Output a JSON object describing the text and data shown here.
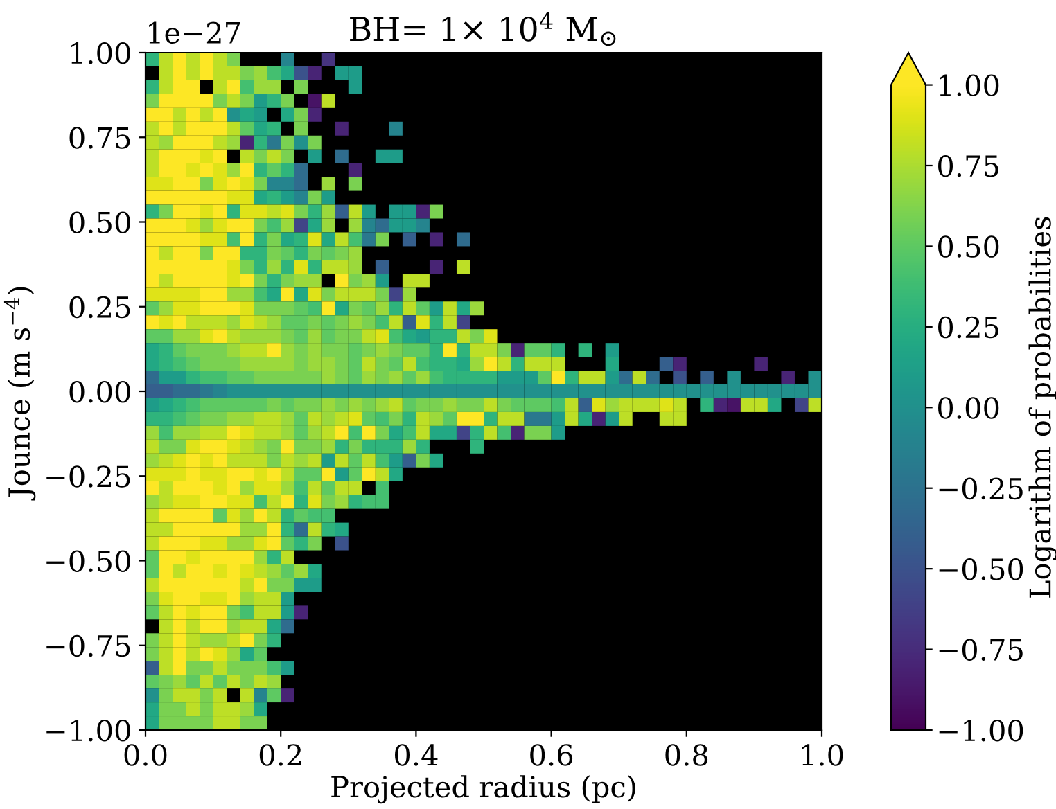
{
  "chart_data": {
    "type": "heatmap",
    "title": "BH= 1× 10$^{4}$ M$_{⊙}$",
    "xlabel": "Projected radius (pc)",
    "ylabel": "Jounce (m s$^{−4}$)",
    "clabel": "Logarithm of probabilities",
    "annotations": [
      "1e−27"
    ],
    "xlim": [
      0,
      1
    ],
    "ylim": [
      -1,
      1
    ],
    "xticks": [
      {
        "value": 0,
        "label": "0.0"
      },
      {
        "value": 0.2,
        "label": "0.2"
      },
      {
        "value": 0.4,
        "label": "0.4"
      },
      {
        "value": 0.6,
        "label": "0.6"
      },
      {
        "value": 0.8,
        "label": "0.8"
      },
      {
        "value": 1,
        "label": "1.0"
      }
    ],
    "yticks": [
      {
        "value": -1,
        "label": "−1.00"
      },
      {
        "value": -0.75,
        "label": "−0.75"
      },
      {
        "value": -0.5,
        "label": "−0.50"
      },
      {
        "value": -0.25,
        "label": "−0.25"
      },
      {
        "value": 0,
        "label": "0.00"
      },
      {
        "value": 0.25,
        "label": "0.25"
      },
      {
        "value": 0.5,
        "label": "0.50"
      },
      {
        "value": 0.75,
        "label": "0.75"
      },
      {
        "value": 1,
        "label": "1.00"
      }
    ],
    "clim": [
      -1,
      1
    ],
    "cticks": [
      {
        "value": -1,
        "label": "−1.00"
      },
      {
        "value": -0.75,
        "label": "−0.75"
      },
      {
        "value": -0.5,
        "label": "−0.50"
      },
      {
        "value": -0.25,
        "label": "−0.25"
      },
      {
        "value": 0,
        "label": "0.00"
      },
      {
        "value": 0.25,
        "label": "0.25"
      },
      {
        "value": 0.5,
        "label": "0.50"
      },
      {
        "value": 0.75,
        "label": "0.75"
      },
      {
        "value": 1,
        "label": "1.00"
      }
    ],
    "cells": [
      [
        0.3,
        0.8,
        1,
        0.8,
        1,
        0.8,
        0.6,
        null,
        null,
        null,
        -0.1,
        null,
        null,
        -0.7,
        null,
        null,
        null,
        null,
        null,
        null,
        null,
        null,
        null,
        null,
        null,
        null,
        null,
        null,
        null,
        null,
        null,
        null,
        null,
        null,
        null,
        null,
        null,
        null,
        null,
        null,
        null,
        null,
        null,
        null,
        null,
        null,
        null,
        null,
        null,
        null
      ],
      [
        null,
        0.8,
        1,
        0.8,
        1,
        0.8,
        0.8,
        0.6,
        0.7,
        0.4,
        0.2,
        -0.5,
        -0.8,
        null,
        0.1,
        0.1,
        null,
        null,
        null,
        null,
        null,
        null,
        null,
        null,
        null,
        null,
        null,
        null,
        null,
        null,
        null,
        null,
        null,
        null,
        null,
        null,
        null,
        null,
        null,
        null,
        null,
        null,
        null,
        null,
        null,
        null,
        null,
        null,
        null,
        null
      ],
      [
        0.3,
        0.8,
        1,
        1,
        null,
        0.8,
        1,
        0.4,
        0.7,
        0.7,
        null,
        0.6,
        null,
        null,
        null,
        0.1,
        null,
        null,
        null,
        null,
        null,
        null,
        null,
        null,
        null,
        null,
        null,
        null,
        null,
        null,
        null,
        null,
        null,
        null,
        null,
        null,
        null,
        null,
        null,
        null,
        null,
        null,
        null,
        null,
        null,
        null,
        null,
        null,
        null,
        null
      ],
      [
        0.6,
        1,
        1,
        1,
        1,
        0.6,
        0.8,
        0.6,
        0.1,
        0.3,
        0.6,
        null,
        -0.9,
        0.8,
        null,
        null,
        null,
        null,
        null,
        null,
        null,
        null,
        null,
        null,
        null,
        null,
        null,
        null,
        null,
        null,
        null,
        null,
        null,
        null,
        null,
        null,
        null,
        null,
        null,
        null,
        null,
        null,
        null,
        null,
        null,
        null,
        null,
        null,
        null,
        null
      ],
      [
        1,
        1,
        0.8,
        1,
        0.8,
        1,
        0.0,
        0.2,
        0.1,
        null,
        0.2,
        0.6,
        -0.8,
        null,
        null,
        null,
        null,
        null,
        null,
        null,
        null,
        null,
        null,
        null,
        null,
        null,
        null,
        null,
        null,
        null,
        null,
        null,
        null,
        null,
        null,
        null,
        null,
        null,
        null,
        null,
        null,
        null,
        null,
        null,
        null,
        null,
        null,
        null,
        null,
        null
      ],
      [
        0.8,
        1,
        0.8,
        1,
        1,
        1,
        0.8,
        0.5,
        0.2,
        0.3,
        null,
        0.6,
        null,
        null,
        -0.8,
        null,
        null,
        null,
        -0.1,
        null,
        null,
        null,
        null,
        null,
        null,
        null,
        null,
        null,
        null,
        null,
        null,
        null,
        null,
        null,
        null,
        null,
        null,
        null,
        null,
        null,
        null,
        null,
        null,
        null,
        null,
        null,
        null,
        null,
        null,
        null
      ],
      [
        0.8,
        0.7,
        1,
        1,
        1,
        0.8,
        0.7,
        -0.8,
        0.3,
        -0.2,
        0.6,
        0.0,
        0.6,
        null,
        null,
        null,
        null,
        null,
        null,
        null,
        null,
        null,
        null,
        null,
        null,
        null,
        null,
        null,
        null,
        null,
        null,
        null,
        null,
        null,
        null,
        null,
        null,
        null,
        null,
        null,
        null,
        null,
        null,
        null,
        null,
        null,
        null,
        null,
        null,
        null
      ],
      [
        0.8,
        1,
        1,
        1,
        0.9,
        1,
        null,
        0.8,
        0.6,
        0.8,
        0.6,
        null,
        0.1,
        null,
        -0.3,
        null,
        null,
        0.1,
        0.1,
        null,
        null,
        null,
        null,
        null,
        null,
        null,
        null,
        null,
        null,
        null,
        null,
        null,
        null,
        null,
        null,
        null,
        null,
        null,
        null,
        null,
        null,
        null,
        null,
        null,
        null,
        null,
        null,
        null,
        null,
        null
      ],
      [
        0.8,
        1,
        1,
        0.9,
        1,
        0.9,
        0.7,
        1,
        0.3,
        0.5,
        0.3,
        -0.3,
        null,
        null,
        null,
        -0.8,
        null,
        null,
        null,
        null,
        null,
        null,
        null,
        null,
        null,
        null,
        null,
        null,
        null,
        null,
        null,
        null,
        null,
        null,
        null,
        null,
        null,
        null,
        null,
        null,
        null,
        null,
        null,
        null,
        null,
        null,
        null,
        null,
        null,
        null
      ],
      [
        0.9,
        0.9,
        1,
        1,
        0.6,
        0.9,
        1,
        0.9,
        0.6,
        -0.1,
        -0.1,
        -0.3,
        null,
        0.7,
        null,
        0.6,
        null,
        null,
        null,
        null,
        null,
        null,
        null,
        null,
        null,
        null,
        null,
        null,
        null,
        null,
        null,
        null,
        null,
        null,
        null,
        null,
        null,
        null,
        null,
        null,
        null,
        null,
        null,
        null,
        null,
        null,
        null,
        null,
        null,
        null
      ],
      [
        1,
        1,
        1,
        1,
        1,
        1,
        0.9,
        0.9,
        0.2,
        0.3,
        0.1,
        -0.1,
        0.6,
        0.1,
        null,
        null,
        null,
        null,
        null,
        null,
        null,
        null,
        null,
        null,
        null,
        null,
        null,
        null,
        null,
        null,
        null,
        null,
        null,
        null,
        null,
        null,
        null,
        null,
        null,
        null,
        null,
        null,
        null,
        null,
        null,
        null,
        null,
        null,
        null,
        null
      ],
      [
        0.3,
        0.6,
        1,
        1,
        0.9,
        1,
        0.3,
        0.9,
        0.9,
        0.8,
        0.9,
        0.6,
        0.3,
        0.7,
        -0.4,
        0.8,
        0.1,
        null,
        0.1,
        0.1,
        -0.8,
        0.6,
        null,
        null,
        null,
        null,
        null,
        null,
        null,
        null,
        null,
        null,
        null,
        null,
        null,
        null,
        null,
        null,
        null,
        null,
        null,
        null,
        null,
        null,
        null,
        null,
        null,
        null,
        null,
        null
      ],
      [
        1,
        1,
        1,
        0.9,
        0.7,
        0.9,
        1,
        1,
        0.6,
        0.4,
        0.7,
        -0.6,
        0.2,
        0.7,
        null,
        0.7,
        -0.1,
        -0.3,
        0.1,
        0.1,
        -0.1,
        null,
        null,
        null,
        null,
        null,
        null,
        null,
        null,
        null,
        null,
        null,
        null,
        null,
        null,
        null,
        null,
        null,
        null,
        null,
        null,
        null,
        null,
        null,
        null,
        null,
        null,
        null,
        null,
        null
      ],
      [
        1,
        1,
        1,
        1,
        0.9,
        0.9,
        0.4,
        1,
        0.3,
        0.6,
        0.2,
        0.3,
        0.9,
        0.2,
        0.8,
        0.4,
        -0.2,
        0.6,
        null,
        -0.4,
        null,
        -0.8,
        null,
        -0.3,
        null,
        null,
        null,
        null,
        null,
        null,
        null,
        null,
        null,
        null,
        null,
        null,
        null,
        null,
        null,
        null,
        null,
        null,
        null,
        null,
        null,
        null,
        null,
        null,
        null,
        null
      ],
      [
        1,
        0.8,
        1,
        1,
        0.6,
        1,
        1,
        0.3,
        0.3,
        0.6,
        0.5,
        0.3,
        0.6,
        0.5,
        0.6,
        0.7,
        null,
        null,
        null,
        null,
        null,
        null,
        null,
        null,
        null,
        null,
        null,
        null,
        null,
        null,
        null,
        null,
        null,
        null,
        null,
        null,
        null,
        null,
        null,
        null,
        null,
        null,
        null,
        null,
        null,
        null,
        null,
        null,
        null,
        null
      ],
      [
        1,
        1,
        1,
        1,
        1,
        1,
        0.9,
        0.6,
        0.3,
        0.7,
        0.3,
        0.9,
        0.3,
        0.8,
        0.8,
        0.7,
        null,
        -0.4,
        null,
        null,
        null,
        -0.8,
        null,
        0.8,
        null,
        null,
        null,
        null,
        null,
        null,
        null,
        null,
        null,
        null,
        null,
        null,
        null,
        null,
        null,
        null,
        null,
        null,
        null,
        null,
        null,
        null,
        null,
        null,
        null,
        null
      ],
      [
        1,
        0.8,
        1,
        1,
        1,
        1,
        0.9,
        1,
        0.6,
        0.3,
        0.6,
        0.7,
        0.7,
        null,
        1,
        0.6,
        0.7,
        0.1,
        null,
        0.8,
        0.8,
        null,
        null,
        null,
        null,
        null,
        null,
        null,
        null,
        null,
        null,
        null,
        null,
        null,
        null,
        null,
        null,
        null,
        null,
        null,
        null,
        null,
        null,
        null,
        null,
        null,
        null,
        null,
        null,
        null
      ],
      [
        0.9,
        0.9,
        0.9,
        0.9,
        1,
        1,
        0.7,
        0.7,
        0.4,
        0.2,
        1,
        0.2,
        0.9,
        0.6,
        0.8,
        0.8,
        0.8,
        0.6,
        -0.6,
        0.7,
        null,
        null,
        null,
        null,
        null,
        null,
        null,
        null,
        null,
        null,
        null,
        null,
        null,
        null,
        null,
        null,
        null,
        null,
        null,
        null,
        null,
        null,
        null,
        null,
        null,
        null,
        null,
        null,
        null,
        null
      ],
      [
        0.5,
        0.7,
        0.9,
        0.9,
        1,
        1,
        1,
        0.9,
        0.6,
        0.6,
        0.6,
        0.5,
        0.4,
        1,
        0.2,
        0.6,
        0.5,
        0.7,
        0.3,
        0.8,
        0.5,
        0.1,
        0.8,
        0.2,
        0.7,
        null,
        null,
        null,
        null,
        null,
        null,
        null,
        null,
        null,
        null,
        null,
        null,
        null,
        null,
        null,
        null,
        null,
        null,
        null,
        null,
        null,
        null,
        null,
        null,
        null
      ],
      [
        1,
        0.9,
        1,
        0.8,
        0.8,
        0.8,
        0.7,
        0.9,
        0.8,
        0.7,
        0.5,
        0.5,
        0.6,
        0.5,
        0.6,
        0.7,
        0.6,
        0.4,
        0.8,
        -0.4,
        0.9,
        0.3,
        0.8,
        -0.6,
        null,
        null,
        null,
        null,
        null,
        null,
        null,
        null,
        null,
        null,
        null,
        null,
        null,
        null,
        null,
        null,
        null,
        null,
        null,
        null,
        null,
        null,
        null,
        null,
        null,
        null
      ],
      [
        0.5,
        0.5,
        0.7,
        0.7,
        0.9,
        1,
        0.8,
        0.7,
        0.7,
        0.7,
        0.6,
        0.5,
        0.7,
        0.5,
        0.6,
        0.6,
        0.8,
        0.9,
        0.4,
        0.2,
        0.1,
        0.3,
        0.3,
        0.8,
        0.6,
        0.9,
        null,
        null,
        null,
        null,
        null,
        null,
        null,
        null,
        null,
        null,
        null,
        null,
        null,
        null,
        null,
        null,
        null,
        null,
        null,
        null,
        null,
        null,
        null,
        null
      ],
      [
        0.2,
        0.3,
        0.5,
        0.6,
        0.6,
        0.6,
        0.7,
        0.8,
        0.8,
        1,
        0.7,
        0.6,
        0.7,
        0.6,
        0.6,
        0.5,
        0.6,
        0.7,
        0.6,
        0.5,
        0.5,
        0.3,
        1,
        0.3,
        0.8,
        0.8,
        0.6,
        -0.8,
        0.5,
        0.5,
        0.3,
        null,
        0.3,
        null,
        0.1,
        null,
        null,
        null,
        null,
        null,
        null,
        null,
        null,
        null,
        null,
        null,
        null,
        null,
        null,
        null
      ],
      [
        0.2,
        0.3,
        0.4,
        0.5,
        0.6,
        0.6,
        0.6,
        0.7,
        0.7,
        0.7,
        0.7,
        0.6,
        0.7,
        0.7,
        0.6,
        0.5,
        0.8,
        0.6,
        0.5,
        0.8,
        0.4,
        0.3,
        0.3,
        0.2,
        0.7,
        1,
        0.8,
        0.3,
        0.8,
        0.8,
        0.8,
        null,
        null,
        null,
        0.2,
        null,
        null,
        null,
        -0.4,
        -0.8,
        null,
        null,
        null,
        null,
        null,
        -0.8,
        null,
        null,
        null,
        null
      ],
      [
        -0.3,
        0.1,
        0.1,
        0.3,
        0.4,
        0.4,
        0.5,
        0.5,
        0.6,
        0.6,
        0.6,
        0.6,
        0.6,
        0.7,
        0.6,
        0.5,
        0.7,
        0.6,
        0.7,
        0.5,
        0.7,
        0.4,
        0.3,
        0.3,
        0.3,
        0.3,
        0.1,
        0.1,
        0.1,
        0.5,
        1,
        0.3,
        0.8,
        0.8,
        0.1,
        -0.3,
        0.8,
        -0.3,
        null,
        -0.5,
        null,
        -0.4,
        null,
        0.0,
        null,
        null,
        null,
        -0.8,
        null,
        0.0
      ],
      [
        -0.4,
        -0.4,
        -0.3,
        -0.3,
        -0.2,
        -0.1,
        0.0,
        0.0,
        0.0,
        0.0,
        0.0,
        0.0,
        0.0,
        0.0,
        0.0,
        0.0,
        0.0,
        0.0,
        0.0,
        0.0,
        0.0,
        0.0,
        0.0,
        0.0,
        0.0,
        0.0,
        0.0,
        0.0,
        0.0,
        0.0,
        0.0,
        0.0,
        0.0,
        0.0,
        0.0,
        0.0,
        0.0,
        0.0,
        0.0,
        0.0,
        0.0,
        0.0,
        0.0,
        0.0,
        0.0,
        0.0,
        0.0,
        0.0,
        0.0,
        0.0
      ],
      [
        0.1,
        0.2,
        0.3,
        0.4,
        0.5,
        0.5,
        0.5,
        0.5,
        0.5,
        0.6,
        0.5,
        0.6,
        0.6,
        0.7,
        0.6,
        0.7,
        0.6,
        0.7,
        0.8,
        0.5,
        0.6,
        0.6,
        0.7,
        0.6,
        0.6,
        0.8,
        0.6,
        0.5,
        0.5,
        0.5,
        0.4,
        0.8,
        -0.4,
        0.9,
        0.7,
        0.8,
        0.8,
        0.8,
        0.9,
        0.8,
        null,
        0.3,
        -0.8,
        -0.9,
        0.8,
        0.8,
        0.2,
        null,
        -0.6,
        0.8
      ],
      [
        0.3,
        0.3,
        0.4,
        0.5,
        0.6,
        0.6,
        0.7,
        0.7,
        0.8,
        0.8,
        0.7,
        0.5,
        0.8,
        0.7,
        0.8,
        0.9,
        0.5,
        0.4,
        0.6,
        0.3,
        0.8,
        0.7,
        0.5,
        1,
        1,
        0.3,
        0.8,
        0.8,
        -0.2,
        -0.2,
        0.1,
        0.8,
        0.2,
        -0.8,
        0.1,
        0.8,
        null,
        null,
        0.8,
        0.8,
        null,
        null,
        null,
        null,
        null,
        null,
        null,
        null,
        null,
        null
      ],
      [
        0.7,
        0.4,
        0.7,
        0.7,
        0.8,
        0.8,
        1,
        0.9,
        0.8,
        0.8,
        0.7,
        0.5,
        0.7,
        0.8,
        1,
        0.4,
        1,
        0.6,
        0.2,
        0.4,
        0.8,
        0.2,
        0.2,
        -0.6,
        0.3,
        0.8,
        0.4,
        -0.8,
        0.6,
        0.6,
        0.1,
        null,
        null,
        null,
        null,
        null,
        null,
        null,
        null,
        null,
        null,
        null,
        null,
        null,
        null,
        null,
        null,
        null,
        null,
        null
      ],
      [
        0.8,
        0.6,
        0.6,
        0.9,
        1,
        1,
        0.9,
        0.8,
        0.7,
        0.6,
        1,
        0.6,
        0.6,
        0.7,
        0.3,
        0.6,
        0.3,
        0.3,
        0.3,
        0.7,
        0.3,
        null,
        null,
        null,
        0.3,
        null,
        null,
        null,
        null,
        null,
        null,
        null,
        null,
        null,
        null,
        null,
        null,
        null,
        null,
        null,
        null,
        null,
        null,
        null,
        null,
        null,
        null,
        null,
        null,
        null
      ],
      [
        0.7,
        0.8,
        0.9,
        1,
        0.9,
        1,
        0.8,
        0.8,
        0.8,
        0.6,
        0.8,
        0.7,
        0.8,
        0.1,
        0.8,
        0.5,
        0.8,
        0.4,
        0.1,
        -0.4,
        0.6,
        0.2,
        null,
        null,
        null,
        null,
        null,
        null,
        null,
        null,
        null,
        null,
        null,
        null,
        null,
        null,
        null,
        null,
        null,
        null,
        null,
        null,
        null,
        null,
        null,
        null,
        null,
        null,
        null,
        null
      ],
      [
        0.9,
        0.9,
        0.9,
        1,
        0.9,
        0.9,
        1,
        1,
        0.9,
        1,
        0.8,
        0.5,
        0.5,
        1,
        0.1,
        0.5,
        1,
        0.8,
        0.2,
        null,
        null,
        null,
        null,
        null,
        null,
        null,
        null,
        null,
        null,
        null,
        null,
        null,
        null,
        null,
        null,
        null,
        null,
        null,
        null,
        null,
        null,
        null,
        null,
        null,
        null,
        null,
        null,
        null,
        null,
        null
      ],
      [
        1,
        0.8,
        1,
        1,
        1,
        0.9,
        1,
        0.7,
        0.9,
        0.9,
        0.7,
        0.4,
        0.8,
        0.5,
        0.8,
        0.8,
        null,
        0.4,
        null,
        null,
        null,
        null,
        null,
        null,
        null,
        null,
        null,
        null,
        null,
        null,
        null,
        null,
        null,
        null,
        null,
        null,
        null,
        null,
        null,
        null,
        null,
        null,
        null,
        null,
        null,
        null,
        null,
        null,
        null,
        null
      ],
      [
        0.7,
        0.8,
        0.9,
        0.9,
        1,
        1,
        0.9,
        0.9,
        0.4,
        0.8,
        1,
        0.3,
        0.9,
        0.6,
        0.7,
        0.3,
        0.4,
        0.4,
        null,
        null,
        null,
        null,
        null,
        null,
        null,
        null,
        null,
        null,
        null,
        null,
        null,
        null,
        null,
        null,
        null,
        null,
        null,
        null,
        null,
        null,
        null,
        null,
        null,
        null,
        null,
        null,
        null,
        null,
        null,
        null
      ],
      [
        0.8,
        1,
        1,
        1,
        1,
        0.5,
        0.9,
        0.7,
        1,
        0.8,
        0.3,
        0.5,
        0.4,
        0.4,
        null,
        null,
        null,
        null,
        null,
        null,
        null,
        null,
        null,
        null,
        null,
        null,
        null,
        null,
        null,
        null,
        null,
        null,
        null,
        null,
        null,
        null,
        null,
        null,
        null,
        null,
        null,
        null,
        null,
        null,
        null,
        null,
        null,
        null,
        null,
        null
      ],
      [
        0.8,
        0.8,
        1,
        1,
        1,
        1,
        1,
        0.7,
        0.7,
        1,
        0.3,
        -0.3,
        0.8,
        0.3,
        0.2,
        null,
        null,
        null,
        null,
        null,
        null,
        null,
        null,
        null,
        null,
        null,
        null,
        null,
        null,
        null,
        null,
        null,
        null,
        null,
        null,
        null,
        null,
        null,
        null,
        null,
        null,
        null,
        null,
        null,
        null,
        null,
        null,
        null,
        null,
        null
      ],
      [
        0.8,
        1,
        1,
        1,
        0.9,
        0.9,
        0.7,
        0.7,
        0.9,
        1,
        0.5,
        0.3,
        0.6,
        null,
        -0.5,
        null,
        null,
        null,
        null,
        null,
        null,
        null,
        null,
        null,
        null,
        null,
        null,
        null,
        null,
        null,
        null,
        null,
        null,
        null,
        null,
        null,
        null,
        null,
        null,
        null,
        null,
        null,
        null,
        null,
        null,
        null,
        null,
        null,
        null,
        null
      ],
      [
        0.5,
        1,
        1,
        0.9,
        1,
        1,
        1,
        1,
        0.7,
        0.3,
        0.8,
        null,
        null,
        null,
        null,
        null,
        null,
        null,
        null,
        null,
        null,
        null,
        null,
        null,
        null,
        null,
        null,
        null,
        null,
        null,
        null,
        null,
        null,
        null,
        null,
        null,
        null,
        null,
        null,
        null,
        null,
        null,
        null,
        null,
        null,
        null,
        null,
        null,
        null,
        null
      ],
      [
        0.5,
        1,
        0.8,
        1,
        1,
        0.9,
        1,
        0.9,
        0.8,
        0.7,
        0.5,
        0.7,
        0.2,
        null,
        null,
        null,
        null,
        null,
        null,
        null,
        null,
        null,
        null,
        null,
        null,
        null,
        null,
        null,
        null,
        null,
        null,
        null,
        null,
        null,
        null,
        null,
        null,
        null,
        null,
        null,
        null,
        null,
        null,
        null,
        null,
        null,
        null,
        null,
        null,
        null
      ],
      [
        0.8,
        1,
        1,
        1,
        1,
        1,
        1,
        0.8,
        1,
        0.6,
        0.6,
        0.1,
        0.1,
        null,
        null,
        null,
        null,
        null,
        null,
        null,
        null,
        null,
        null,
        null,
        null,
        null,
        null,
        null,
        null,
        null,
        null,
        null,
        null,
        null,
        null,
        null,
        null,
        null,
        null,
        null,
        null,
        null,
        null,
        null,
        null,
        null,
        null,
        null,
        null,
        null
      ],
      [
        0.6,
        0.9,
        1,
        1,
        0.9,
        0.9,
        1,
        0.7,
        0.8,
        0.8,
        0.1,
        null,
        null,
        null,
        null,
        null,
        null,
        null,
        null,
        null,
        null,
        null,
        null,
        null,
        null,
        null,
        null,
        null,
        null,
        null,
        null,
        null,
        null,
        null,
        null,
        null,
        null,
        null,
        null,
        null,
        null,
        null,
        null,
        null,
        null,
        null,
        null,
        null,
        null,
        null
      ],
      [
        0.5,
        0.8,
        1,
        0.9,
        1,
        1,
        0.6,
        0.4,
        0.8,
        0.8,
        0.1,
        -0.8,
        null,
        null,
        null,
        null,
        null,
        null,
        null,
        null,
        null,
        null,
        null,
        null,
        null,
        null,
        null,
        null,
        null,
        null,
        null,
        null,
        null,
        null,
        null,
        null,
        null,
        null,
        null,
        null,
        null,
        null,
        null,
        null,
        null,
        null,
        null,
        null,
        null,
        null
      ],
      [
        null,
        0.8,
        1,
        0.8,
        1,
        1,
        0.7,
        0.8,
        0.8,
        0.2,
        -0.3,
        null,
        null,
        null,
        null,
        null,
        null,
        null,
        null,
        null,
        null,
        null,
        null,
        null,
        null,
        null,
        null,
        null,
        null,
        null,
        null,
        null,
        null,
        null,
        null,
        null,
        null,
        null,
        null,
        null,
        null,
        null,
        null,
        null,
        null,
        null,
        null,
        null,
        null,
        null
      ],
      [
        0.6,
        0.8,
        1,
        0.8,
        0.7,
        0.7,
        0.8,
        1,
        0.6,
        0.3,
        null,
        null,
        null,
        null,
        null,
        null,
        null,
        null,
        null,
        null,
        null,
        null,
        null,
        null,
        null,
        null,
        null,
        null,
        null,
        null,
        null,
        null,
        null,
        null,
        null,
        null,
        null,
        null,
        null,
        null,
        null,
        null,
        null,
        null,
        null,
        null,
        null,
        null,
        null,
        null
      ],
      [
        0.6,
        0.8,
        1,
        0.8,
        1,
        0.9,
        0.7,
        0.2,
        0.5,
        null,
        null,
        null,
        null,
        null,
        null,
        null,
        null,
        null,
        null,
        null,
        null,
        null,
        null,
        null,
        null,
        null,
        null,
        null,
        null,
        null,
        null,
        null,
        null,
        null,
        null,
        null,
        null,
        null,
        null,
        null,
        null,
        null,
        null,
        null,
        null,
        null,
        null,
        null,
        null,
        null
      ],
      [
        -0.4,
        0.8,
        1,
        0.6,
        0.6,
        0.8,
        0.6,
        0.6,
        0.6,
        0.4,
        0.1,
        null,
        null,
        null,
        null,
        null,
        null,
        null,
        null,
        null,
        null,
        null,
        null,
        null,
        null,
        null,
        null,
        null,
        null,
        null,
        null,
        null,
        null,
        null,
        null,
        null,
        null,
        null,
        null,
        null,
        null,
        null,
        null,
        null,
        null,
        null,
        null,
        null,
        null,
        null
      ],
      [
        0.5,
        0.6,
        0.7,
        0.5,
        0.8,
        0.5,
        0.8,
        0.6,
        0.8,
        0.7,
        null,
        null,
        null,
        null,
        null,
        null,
        null,
        null,
        null,
        null,
        null,
        null,
        null,
        null,
        null,
        null,
        null,
        null,
        null,
        null,
        null,
        null,
        null,
        null,
        null,
        null,
        null,
        null,
        null,
        null,
        null,
        null,
        null,
        null,
        null,
        null,
        null,
        null,
        null,
        null
      ],
      [
        0.0,
        0.6,
        0.8,
        0.8,
        0.6,
        0.8,
        null,
        0.8,
        -0.1,
        0.5,
        -0.8,
        null,
        null,
        null,
        null,
        null,
        null,
        null,
        null,
        null,
        null,
        null,
        null,
        null,
        null,
        null,
        null,
        null,
        null,
        null,
        null,
        null,
        null,
        null,
        null,
        null,
        null,
        null,
        null,
        null,
        null,
        null,
        null,
        null,
        null,
        null,
        null,
        null,
        null,
        null
      ],
      [
        0.2,
        0.6,
        0.6,
        0.8,
        0.6,
        0.8,
        0.8,
        0.7,
        0.2,
        null,
        null,
        null,
        null,
        null,
        null,
        null,
        null,
        null,
        null,
        null,
        null,
        null,
        null,
        null,
        null,
        null,
        null,
        null,
        null,
        null,
        null,
        null,
        null,
        null,
        null,
        null,
        null,
        null,
        null,
        null,
        null,
        null,
        null,
        null,
        null,
        null,
        null,
        null,
        null,
        null
      ],
      [
        0.2,
        0.6,
        0.6,
        0.6,
        0.6,
        0.8,
        0.8,
        0.6,
        0.6,
        null,
        null,
        null,
        null,
        null,
        null,
        null,
        null,
        null,
        null,
        null,
        null,
        null,
        null,
        null,
        null,
        null,
        null,
        null,
        null,
        null,
        null,
        null,
        null,
        null,
        null,
        null,
        null,
        null,
        null,
        null,
        null,
        null,
        null,
        null,
        null,
        null,
        null,
        null,
        null,
        null
      ]
    ]
  }
}
